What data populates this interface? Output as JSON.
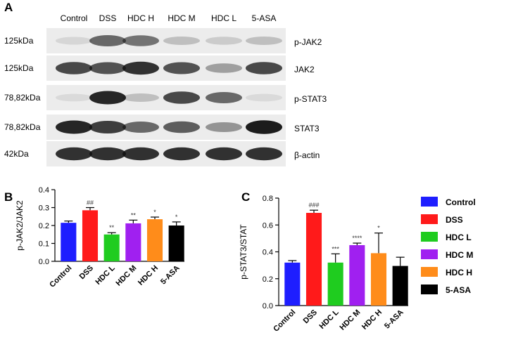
{
  "blot": {
    "panel": "A",
    "lanes": [
      "Control",
      "DSS",
      "HDC H",
      "HDC M",
      "HDC L",
      "5-ASA"
    ],
    "rows": [
      {
        "size": "125kDa",
        "protein": "p-JAK2"
      },
      {
        "size": "125kDa",
        "protein": "JAK2"
      },
      {
        "size": "78,82kDa",
        "protein": "p-STAT3"
      },
      {
        "size": "78,82kDa",
        "protein": "STAT3"
      },
      {
        "size": "42kDa",
        "protein": "β-actin"
      }
    ]
  },
  "chart_data": [
    {
      "type": "bar",
      "panel": "B",
      "y_label": "p-JAK2/JAK2",
      "categories": [
        "Control",
        "DSS",
        "HDC L",
        "HDC M",
        "HDC H",
        "5-ASA"
      ],
      "values": [
        0.215,
        0.285,
        0.15,
        0.212,
        0.235,
        0.2
      ],
      "errors": [
        0.01,
        0.015,
        0.01,
        0.018,
        0.012,
        0.02
      ],
      "annotations": [
        null,
        "##",
        "**",
        "**",
        "*",
        "*"
      ],
      "colors": [
        "#1e1eff",
        "#ff1a1a",
        "#1fcc1f",
        "#a020f0",
        "#ff8c1a",
        "#000000"
      ],
      "ylim": [
        0,
        0.4
      ],
      "yticks": [
        {
          "value": 0,
          "label": "0.0"
        },
        0.1,
        0.2,
        0.3,
        0.4
      ]
    },
    {
      "type": "bar",
      "panel": "C",
      "y_label": "p-STAT3/STAT",
      "categories": [
        "Control",
        "DSS",
        "HDC L",
        "HDC M",
        "HDC H",
        "5-ASA"
      ],
      "values": [
        0.32,
        0.69,
        0.32,
        0.45,
        0.39,
        0.295
      ],
      "errors": [
        0.015,
        0.02,
        0.065,
        0.015,
        0.15,
        0.065
      ],
      "annotations": [
        null,
        "###",
        "***",
        "****",
        "*",
        null
      ],
      "colors": [
        "#1e1eff",
        "#ff1a1a",
        "#1fcc1f",
        "#a020f0",
        "#ff8c1a",
        "#000000"
      ],
      "ylim": [
        0,
        0.8
      ],
      "yticks": [
        {
          "value": 0,
          "label": "0.0"
        },
        0.2,
        0.4,
        0.6,
        0.8
      ],
      "legend": "right"
    }
  ]
}
